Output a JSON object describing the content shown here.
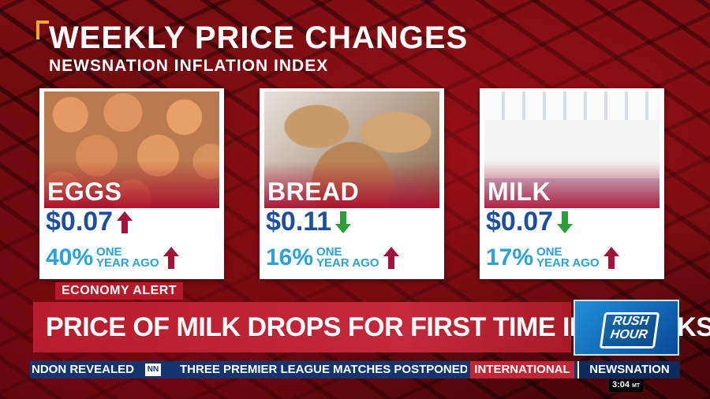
{
  "title": "WEEKLY PRICE CHANGES",
  "subtitle": "NEWSNATION INFLATION INDEX",
  "colors": {
    "up_arrow": "#a3143a",
    "down_arrow": "#2e9e3a",
    "price_blue": "#1d4f9c",
    "accent_red": "#b71d2c",
    "ticker_blue": "#15356e"
  },
  "cards": [
    {
      "name": "EGGS",
      "price": "$0.07",
      "price_direction": "up",
      "yoy_pct": "40%",
      "yoy_label_1": "ONE",
      "yoy_label_2": "YEAR AGO",
      "yoy_direction": "up"
    },
    {
      "name": "BREAD",
      "price": "$0.11",
      "price_direction": "down",
      "yoy_pct": "16%",
      "yoy_label_1": "ONE",
      "yoy_label_2": "YEAR AGO",
      "yoy_direction": "up"
    },
    {
      "name": "MILK",
      "price": "$0.07",
      "price_direction": "down",
      "yoy_pct": "17%",
      "yoy_label_1": "ONE",
      "yoy_label_2": "YEAR AGO",
      "yoy_direction": "up"
    }
  ],
  "alert_tag": "ECONOMY ALERT",
  "headline": "PRICE OF MILK DROPS FOR FIRST TIME IN 3 WEEKS",
  "show_logo": {
    "line1": "RUSH",
    "line2": "HOUR"
  },
  "ticker": {
    "item1": "NDON REVEALED",
    "nn_badge": "NN",
    "item2": "THREE PREMIER LEAGUE MATCHES POSTPONED TI",
    "category": "INTERNATIONAL",
    "brand": "NEWSNATION"
  },
  "clock": {
    "time": "3:04",
    "zone": "MT"
  }
}
